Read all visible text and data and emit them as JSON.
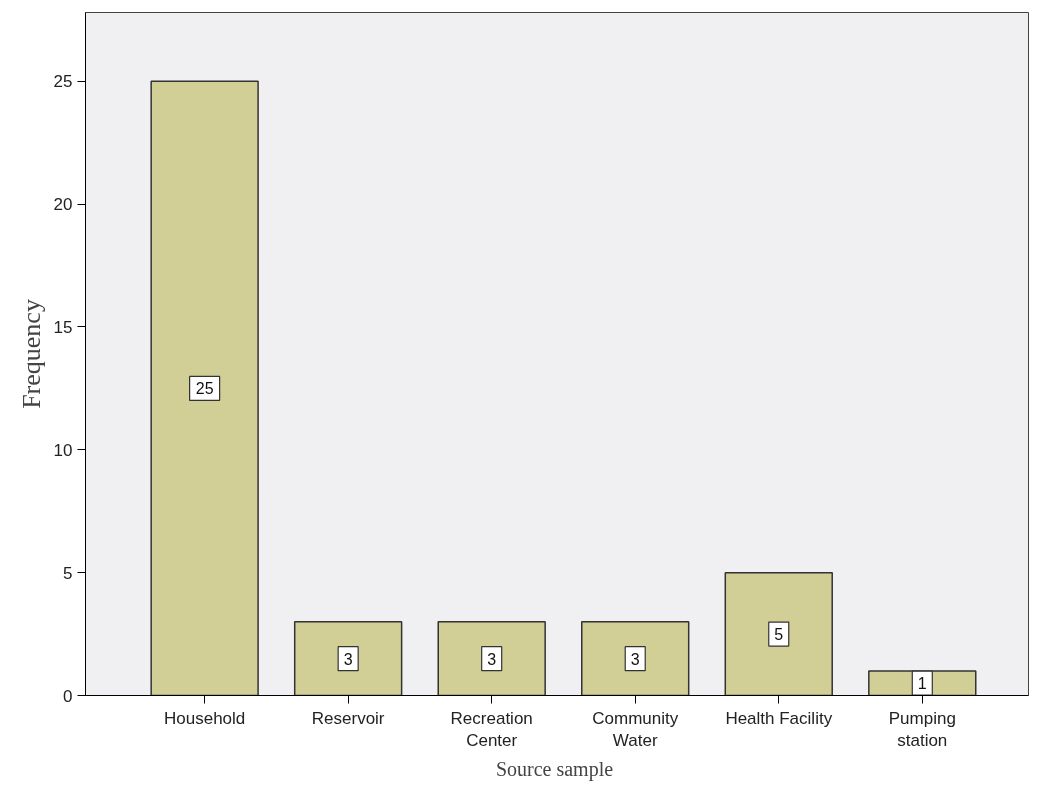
{
  "chart_data": {
    "type": "bar",
    "xlabel": "Source  sample",
    "ylabel": "Frequency",
    "categories": [
      "Household",
      "Reservoir",
      "Recreation Center",
      "Community Water",
      "Health Facility",
      "Pumping station"
    ],
    "values": [
      25,
      3,
      3,
      3,
      5,
      1
    ],
    "color": "#d2cf96",
    "ylim": [
      0,
      27.8
    ],
    "yticks": [
      0,
      5,
      10,
      15,
      20,
      25
    ],
    "grid": false,
    "data_labels": true
  }
}
